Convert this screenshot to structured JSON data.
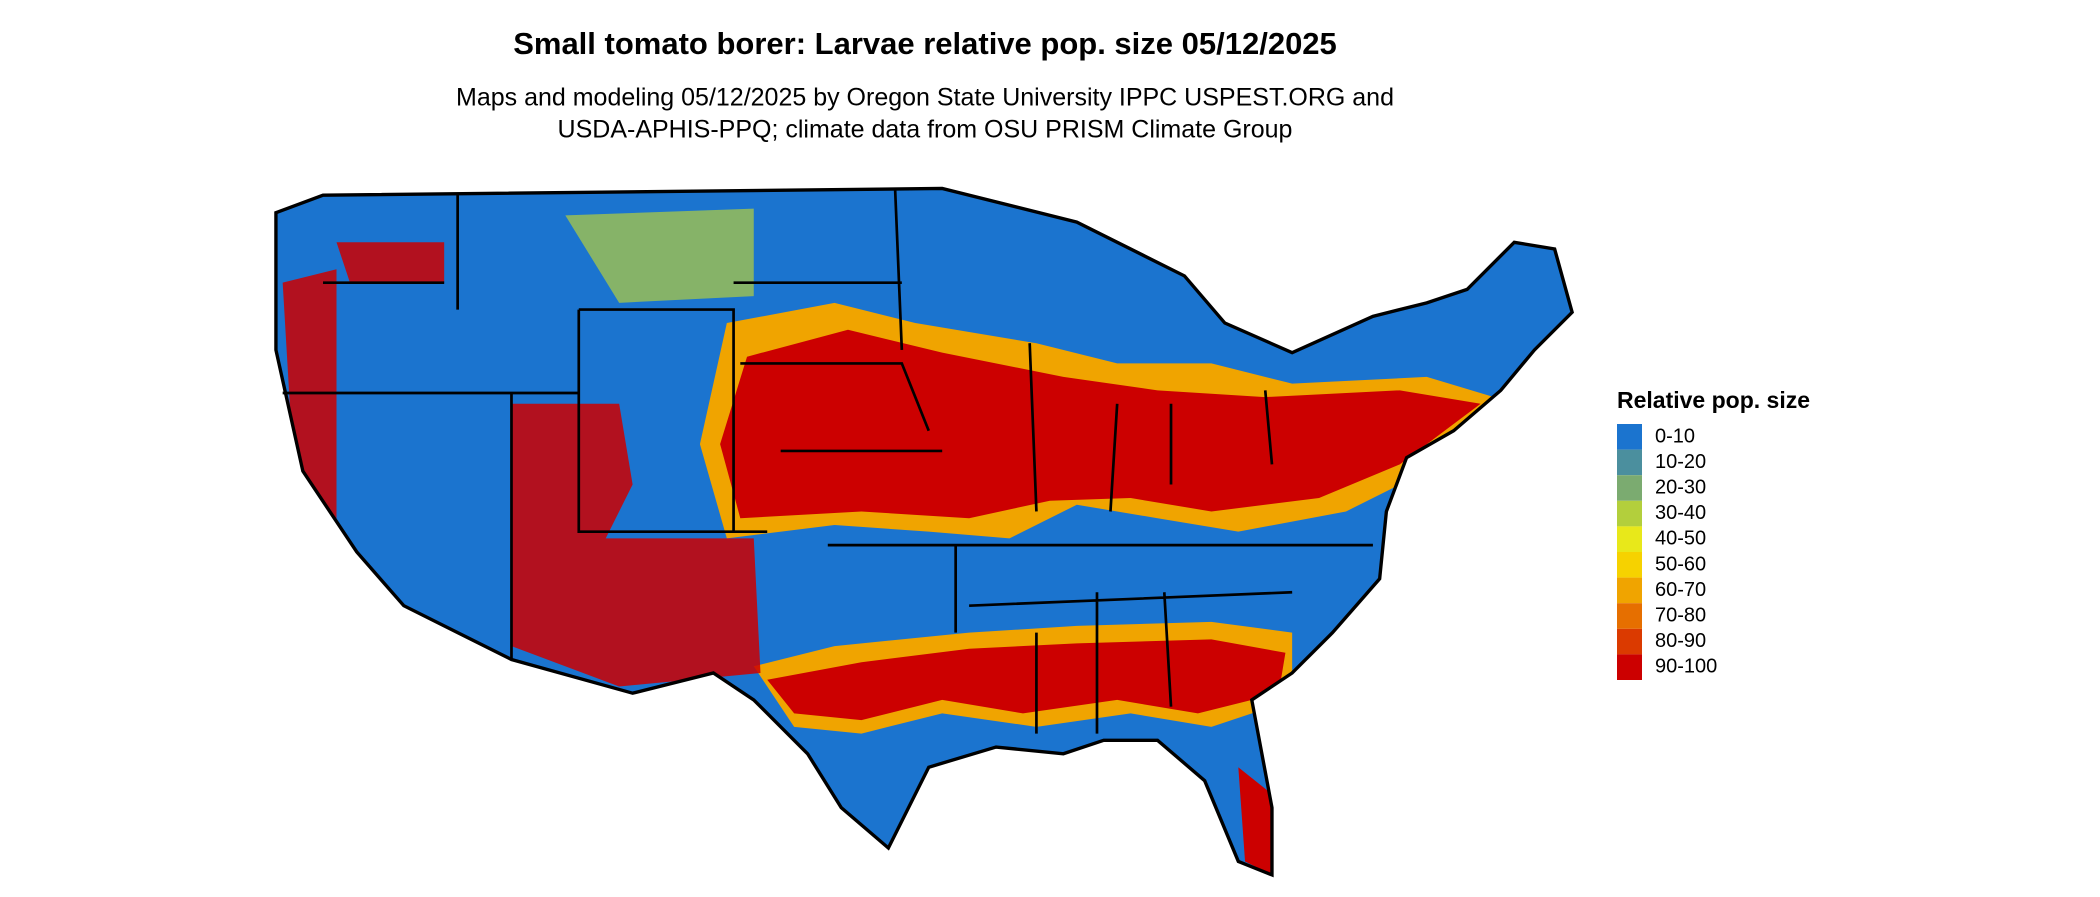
{
  "title": "Small tomato borer: Larvae relative pop. size 05/12/2025",
  "subtitle": [
    "Maps and modeling 05/12/2025 by Oregon State University IPPC USPEST.ORG and",
    "USDA-APHIS-PPQ; climate data from OSU PRISM Climate Group"
  ],
  "legend": {
    "title": "Relative pop. size",
    "items": [
      {
        "label": "0-10",
        "color": "#1b74cf"
      },
      {
        "label": "10-20",
        "color": "#4b8f9e"
      },
      {
        "label": "20-30",
        "color": "#7bab70"
      },
      {
        "label": "30-40",
        "color": "#b3cf3c"
      },
      {
        "label": "40-50",
        "color": "#e8e81a"
      },
      {
        "label": "50-60",
        "color": "#f6d200"
      },
      {
        "label": "60-70",
        "color": "#f0a400"
      },
      {
        "label": "70-80",
        "color": "#e66f00"
      },
      {
        "label": "80-90",
        "color": "#db3a00"
      },
      {
        "label": "90-100",
        "color": "#cc0000"
      }
    ]
  }
}
